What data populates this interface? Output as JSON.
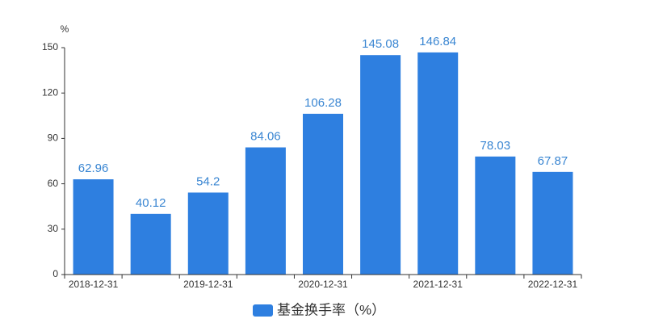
{
  "chart_data": {
    "type": "bar",
    "y_label": "%",
    "categories": [
      "2018-12-31",
      null,
      "2019-12-31",
      null,
      "2020-12-31",
      null,
      "2021-12-31",
      null,
      "2022-12-31"
    ],
    "series": [
      {
        "name": "基金换手率（%）",
        "color": "#2e7fe0",
        "values": [
          62.96,
          40.12,
          54.2,
          84.06,
          106.28,
          145.08,
          146.84,
          78.03,
          67.87
        ]
      }
    ],
    "ylim": [
      0,
      150
    ],
    "yticks": [
      0,
      30,
      60,
      90,
      120,
      150
    ],
    "grid": false
  }
}
